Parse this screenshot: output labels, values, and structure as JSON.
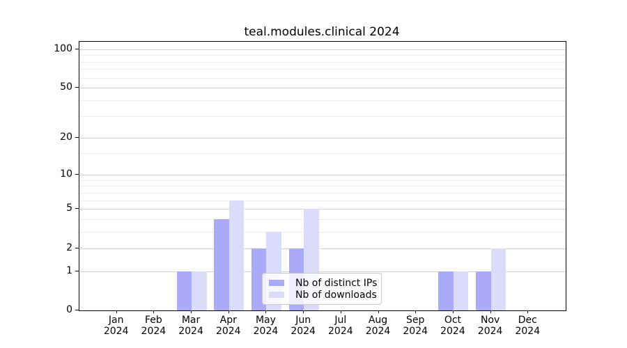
{
  "title": "teal.modules.clinical 2024",
  "chart_data": {
    "type": "bar",
    "title": "teal.modules.clinical 2024",
    "categories": [
      {
        "month": "Jan",
        "year": "2024"
      },
      {
        "month": "Feb",
        "year": "2024"
      },
      {
        "month": "Mar",
        "year": "2024"
      },
      {
        "month": "Apr",
        "year": "2024"
      },
      {
        "month": "May",
        "year": "2024"
      },
      {
        "month": "Jun",
        "year": "2024"
      },
      {
        "month": "Jul",
        "year": "2024"
      },
      {
        "month": "Aug",
        "year": "2024"
      },
      {
        "month": "Sep",
        "year": "2024"
      },
      {
        "month": "Oct",
        "year": "2024"
      },
      {
        "month": "Nov",
        "year": "2024"
      },
      {
        "month": "Dec",
        "year": "2024"
      }
    ],
    "series": [
      {
        "name": "Nb of distinct IPs",
        "color": "#aaaaf8",
        "values": [
          0,
          0,
          1,
          4,
          2,
          2,
          0,
          0,
          0,
          1,
          1,
          0
        ]
      },
      {
        "name": "Nb of downloads",
        "color": "#dbdbfa",
        "values": [
          0,
          0,
          1,
          6,
          3,
          5,
          0,
          0,
          0,
          1,
          2,
          0
        ]
      }
    ],
    "xlabel": "",
    "ylabel": "",
    "yscale": "log1p",
    "ylim": [
      0,
      114
    ],
    "yticks": [
      0,
      1,
      2,
      5,
      10,
      20,
      50,
      100
    ],
    "yticks_minor": [
      3,
      4,
      6,
      7,
      8,
      9,
      15,
      30,
      40,
      60,
      70,
      80,
      90
    ],
    "grid": "horizontal major and minor",
    "legend_position": "lower center-right inside plot",
    "colors": {
      "grid_major": "#d2d2d2",
      "grid_minor": "#ececec",
      "axis": "#000000",
      "background": "#ffffff"
    }
  }
}
